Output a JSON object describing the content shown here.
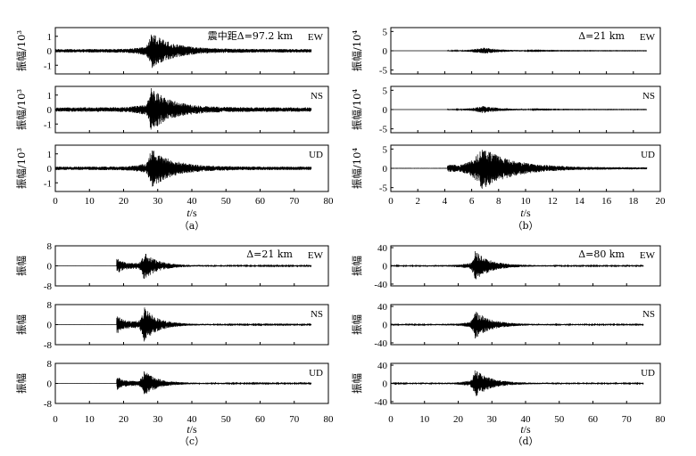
{
  "chart_data": [
    {
      "type": "line",
      "panel_label": "（a）",
      "annotation": "震中距Δ=97.2 km",
      "xlabel": "t/s",
      "xlim": [
        0,
        80
      ],
      "xticks": [
        0,
        10,
        20,
        30,
        40,
        50,
        60,
        70,
        80
      ],
      "ylabel": "振幅/10³",
      "ylim": [
        -1.6,
        1.6
      ],
      "yticks": [
        -1,
        0,
        1
      ],
      "series": [
        {
          "name": "EW",
          "t_end": 75,
          "onset": 0,
          "noise": 0.12,
          "peak_t": 28,
          "peak_amp": 1.2,
          "decay": 6
        },
        {
          "name": "NS",
          "t_end": 75,
          "onset": 0,
          "noise": 0.15,
          "peak_t": 28,
          "peak_amp": 1.4,
          "decay": 6
        },
        {
          "name": "UD",
          "t_end": 75,
          "onset": 0,
          "noise": 0.12,
          "peak_t": 28,
          "peak_amp": 1.3,
          "decay": 6
        }
      ]
    },
    {
      "type": "line",
      "panel_label": "（b）",
      "annotation": "Δ=21 km",
      "xlabel": "t/s",
      "xlim": [
        0,
        20
      ],
      "xticks": [
        0,
        2,
        4,
        6,
        8,
        10,
        12,
        14,
        16,
        18,
        20
      ],
      "ylabel": "振幅/10⁴",
      "ylim": [
        -6,
        6
      ],
      "yticks": [
        -5,
        0,
        5
      ],
      "series": [
        {
          "name": "EW",
          "t_end": 19,
          "onset": 4.2,
          "noise": 0.05,
          "peak_t": 6.8,
          "peak_amp": 0.8,
          "decay": 1.5
        },
        {
          "name": "NS",
          "t_end": 19,
          "onset": 4.2,
          "noise": 0.05,
          "peak_t": 6.8,
          "peak_amp": 0.9,
          "decay": 1.5
        },
        {
          "name": "UD",
          "t_end": 19,
          "onset": 4.2,
          "noise": 0.25,
          "peak_t": 6.8,
          "peak_amp": 5.2,
          "decay": 2.2
        }
      ]
    },
    {
      "type": "line",
      "panel_label": "（c）",
      "annotation": "Δ=21 km",
      "xlabel": "t/s",
      "xlim": [
        0,
        80
      ],
      "xticks": [
        0,
        10,
        20,
        30,
        40,
        50,
        60,
        70,
        80
      ],
      "ylabel": "振幅",
      "ylim": [
        -8,
        8
      ],
      "yticks": [
        -8,
        0,
        8
      ],
      "series": [
        {
          "name": "EW",
          "t_end": 75,
          "onset": 18,
          "noise": 0.2,
          "peak_t": 26,
          "peak_amp": 5.5,
          "decay": 4,
          "pre_amp": 3.0
        },
        {
          "name": "NS",
          "t_end": 75,
          "onset": 18,
          "noise": 0.2,
          "peak_t": 26,
          "peak_amp": 7.0,
          "decay": 4,
          "pre_amp": 3.5
        },
        {
          "name": "UD",
          "t_end": 75,
          "onset": 18,
          "noise": 0.2,
          "peak_t": 26,
          "peak_amp": 5.0,
          "decay": 4,
          "pre_amp": 2.5
        }
      ]
    },
    {
      "type": "line",
      "panel_label": "（d）",
      "annotation": "Δ=80 km",
      "xlabel": "t/s",
      "xlim": [
        0,
        80
      ],
      "xticks": [
        0,
        10,
        20,
        30,
        40,
        50,
        60,
        70,
        80
      ],
      "ylabel": "振幅",
      "ylim": [
        -44,
        44
      ],
      "yticks": [
        -40,
        0,
        40
      ],
      "series": [
        {
          "name": "EW",
          "t_end": 75,
          "onset": 0,
          "noise": 1.2,
          "peak_t": 25,
          "peak_amp": 32,
          "decay": 4.5
        },
        {
          "name": "NS",
          "t_end": 75,
          "onset": 0,
          "noise": 1.2,
          "peak_t": 25,
          "peak_amp": 30,
          "decay": 4.5
        },
        {
          "name": "UD",
          "t_end": 75,
          "onset": 0,
          "noise": 1.2,
          "peak_t": 25,
          "peak_amp": 30,
          "decay": 4.5
        }
      ]
    }
  ]
}
